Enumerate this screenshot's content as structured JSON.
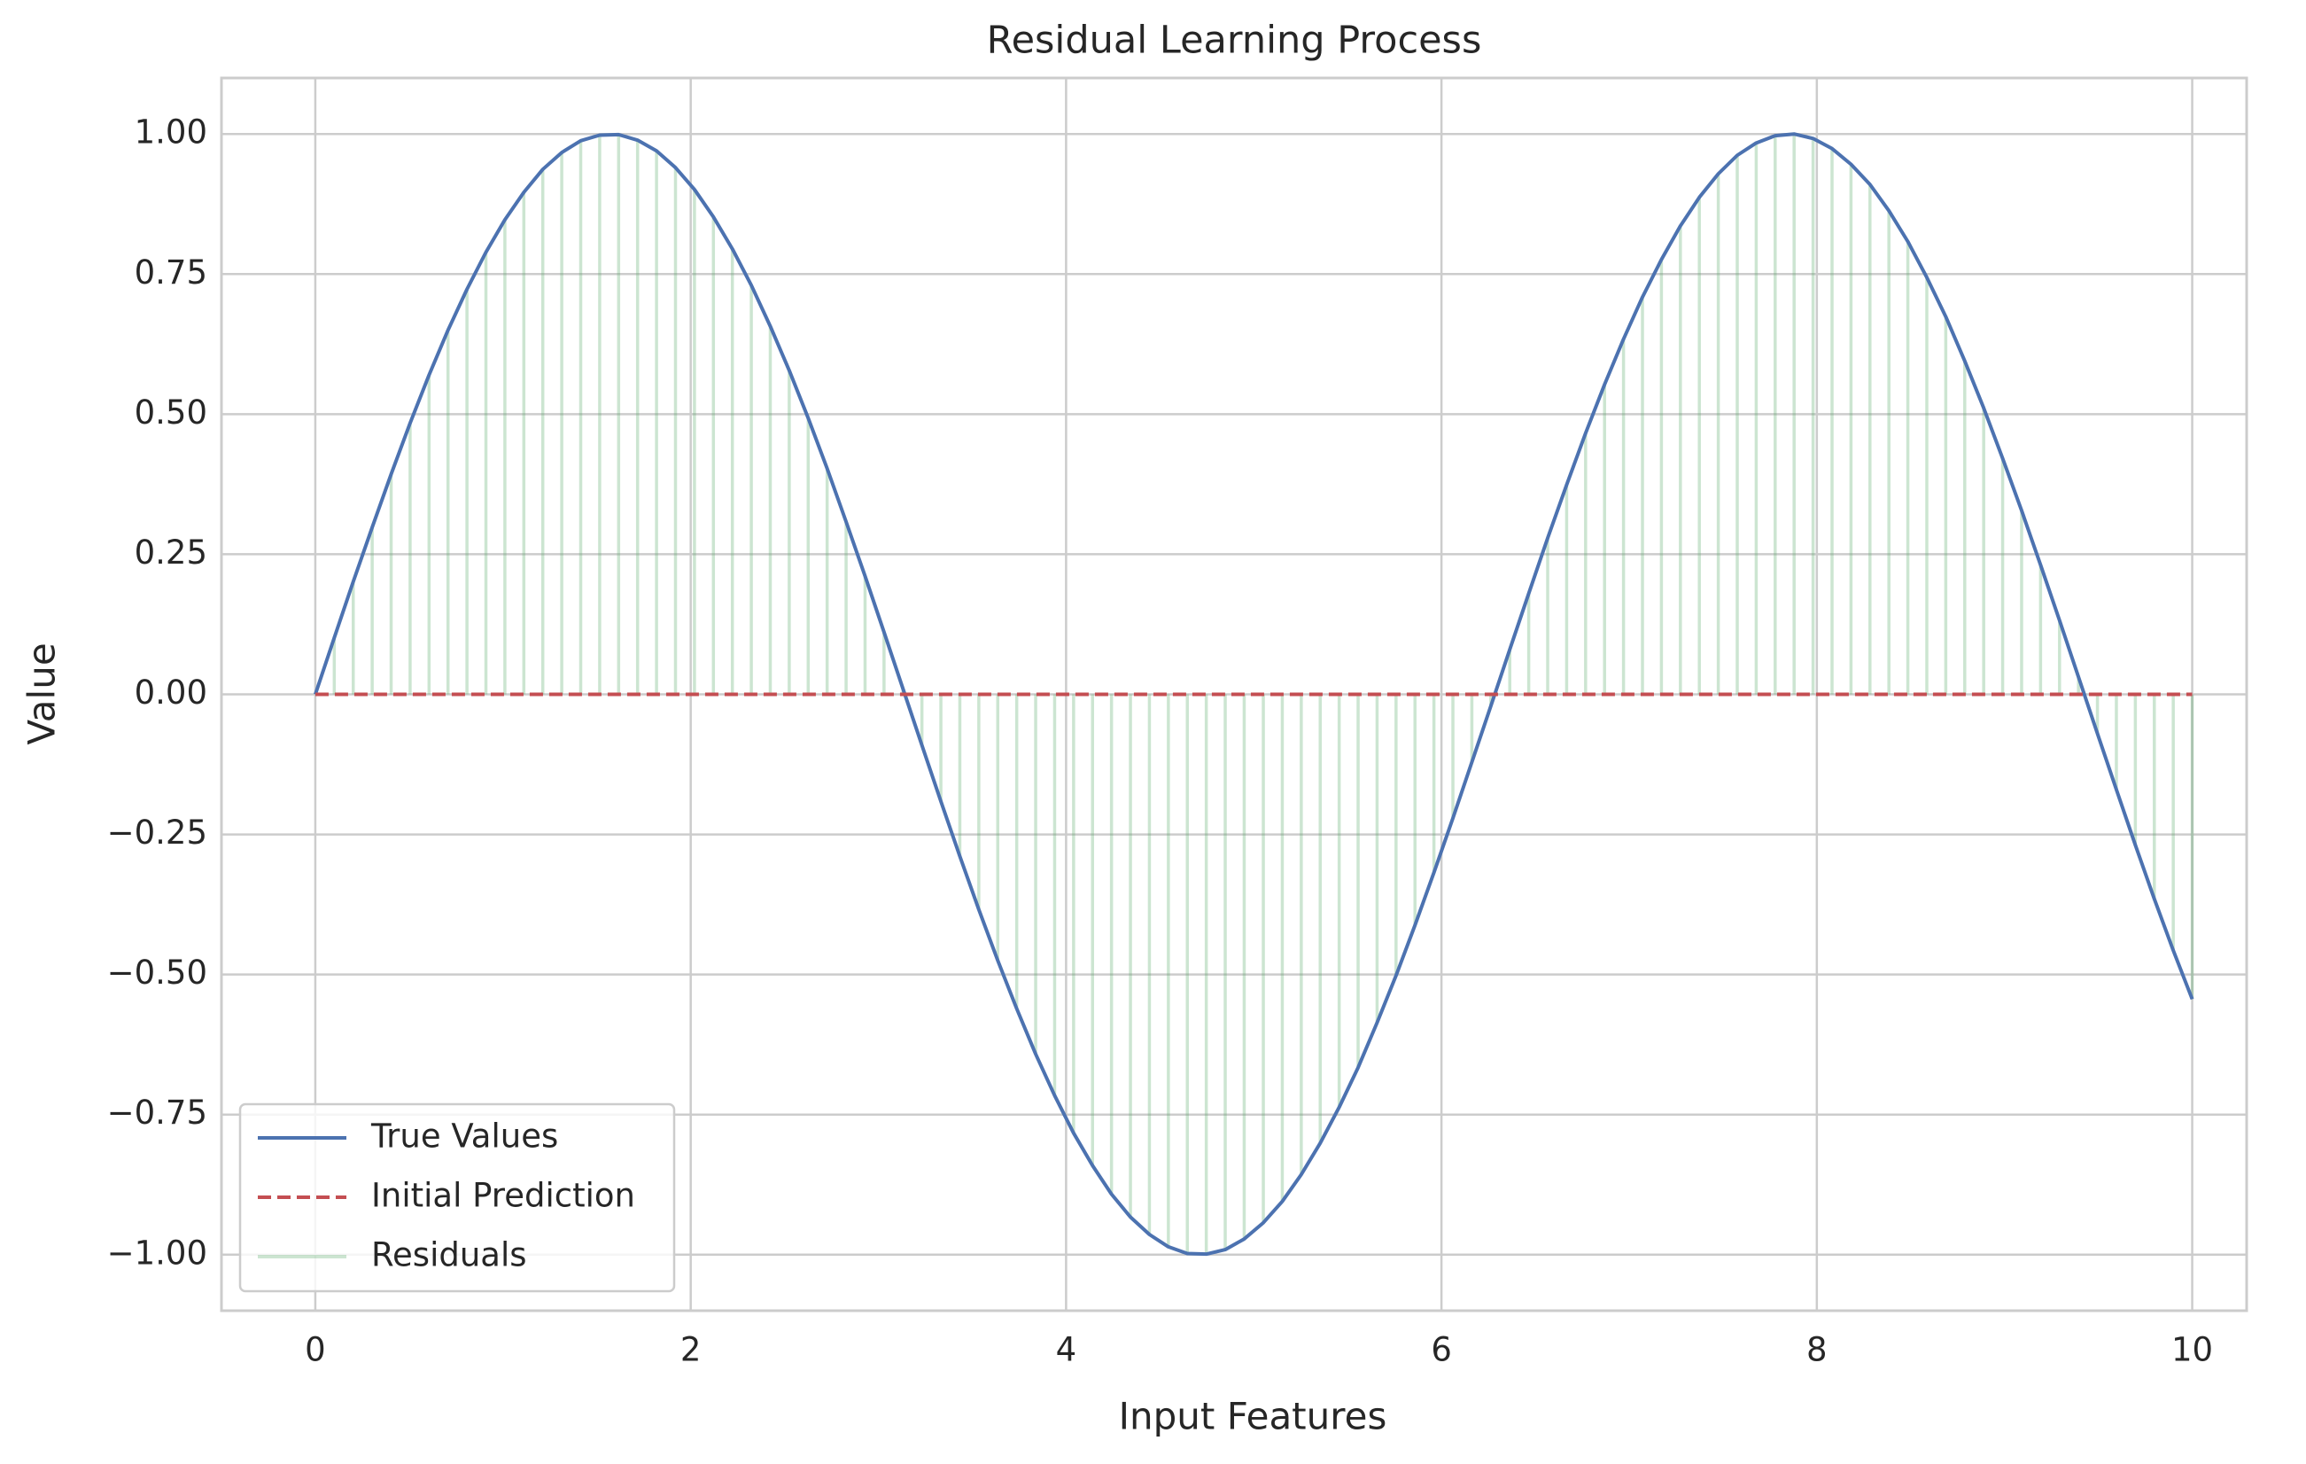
{
  "chart_data": {
    "type": "line",
    "title": "Residual Learning Process",
    "xlabel": "Input Features",
    "ylabel": "Value",
    "x": [
      0,
      0.101,
      0.202,
      0.303,
      0.404,
      0.505,
      0.606,
      0.707,
      0.808,
      0.909,
      1.01,
      1.111,
      1.212,
      1.313,
      1.414,
      1.515,
      1.616,
      1.717,
      1.818,
      1.919,
      2.02,
      2.121,
      2.222,
      2.323,
      2.424,
      2.525,
      2.626,
      2.727,
      2.828,
      2.929,
      3.03,
      3.131,
      3.232,
      3.333,
      3.434,
      3.535,
      3.636,
      3.737,
      3.838,
      3.939,
      4.04,
      4.141,
      4.242,
      4.343,
      4.444,
      4.545,
      4.646,
      4.747,
      4.848,
      4.949,
      5.051,
      5.152,
      5.253,
      5.354,
      5.455,
      5.556,
      5.657,
      5.758,
      5.859,
      5.96,
      6.061,
      6.162,
      6.263,
      6.364,
      6.465,
      6.566,
      6.667,
      6.768,
      6.869,
      6.97,
      7.071,
      7.172,
      7.273,
      7.374,
      7.475,
      7.576,
      7.677,
      7.778,
      7.879,
      7.98,
      8.081,
      8.182,
      8.283,
      8.384,
      8.485,
      8.586,
      8.687,
      8.788,
      8.889,
      8.99,
      9.091,
      9.192,
      9.293,
      9.394,
      9.495,
      9.596,
      9.697,
      9.798,
      9.899,
      10
    ],
    "series": [
      {
        "name": "True Values",
        "color": "#4c72b0",
        "values": [
          0,
          0.101,
          0.201,
          0.298,
          0.393,
          0.484,
          0.57,
          0.65,
          0.723,
          0.789,
          0.847,
          0.896,
          0.937,
          0.967,
          0.988,
          0.998,
          0.999,
          0.989,
          0.97,
          0.94,
          0.901,
          0.852,
          0.795,
          0.73,
          0.657,
          0.578,
          0.493,
          0.403,
          0.308,
          0.211,
          0.111,
          0.01,
          -0.091,
          -0.191,
          -0.289,
          -0.384,
          -0.475,
          -0.561,
          -0.642,
          -0.716,
          -0.783,
          -0.841,
          -0.892,
          -0.933,
          -0.964,
          -0.986,
          -0.998,
          -0.999,
          -0.991,
          -0.972,
          -0.943,
          -0.905,
          -0.857,
          -0.801,
          -0.737,
          -0.666,
          -0.586,
          -0.502,
          -0.412,
          -0.318,
          -0.221,
          -0.121,
          -0.021,
          0.08,
          0.18,
          0.279,
          0.374,
          0.466,
          0.553,
          0.634,
          0.709,
          0.776,
          0.836,
          0.887,
          0.929,
          0.962,
          0.984,
          0.997,
          1,
          0.992,
          0.974,
          0.946,
          0.91,
          0.863,
          0.808,
          0.744,
          0.674,
          0.595,
          0.511,
          0.421,
          0.328,
          0.231,
          0.132,
          0.031,
          -0.07,
          -0.17,
          -0.269,
          -0.365,
          -0.457,
          -0.544
        ]
      },
      {
        "name": "Initial Prediction",
        "color": "#c44e52",
        "dashed": true,
        "values": [
          0,
          0,
          0,
          0,
          0,
          0,
          0,
          0,
          0,
          0,
          0,
          0,
          0,
          0,
          0,
          0,
          0,
          0,
          0,
          0,
          0,
          0,
          0,
          0,
          0,
          0,
          0,
          0,
          0,
          0,
          0,
          0,
          0,
          0,
          0,
          0,
          0,
          0,
          0,
          0,
          0,
          0,
          0,
          0,
          0,
          0,
          0,
          0,
          0,
          0,
          0,
          0,
          0,
          0,
          0,
          0,
          0,
          0,
          0,
          0,
          0,
          0,
          0,
          0,
          0,
          0,
          0,
          0,
          0,
          0,
          0,
          0,
          0,
          0,
          0,
          0,
          0,
          0,
          0,
          0,
          0,
          0,
          0,
          0,
          0,
          0,
          0,
          0,
          0,
          0,
          0,
          0,
          0,
          0,
          0,
          0,
          0,
          0,
          0,
          0
        ]
      },
      {
        "name": "Residuals",
        "color": "#55a868",
        "opacity": 0.3
      }
    ],
    "xlim": [
      -0.5,
      10.29
    ],
    "xticks": [
      0,
      2,
      4,
      6,
      8,
      10
    ],
    "ylim": [
      -1.1,
      1.1
    ],
    "yticks": [
      {
        "value": -1,
        "label": "−1.00"
      },
      {
        "value": -0.75,
        "label": "−0.75"
      },
      {
        "value": -0.5,
        "label": "−0.50"
      },
      {
        "value": -0.25,
        "label": "−0.25"
      },
      {
        "value": 0,
        "label": "0.00"
      },
      {
        "value": 0.25,
        "label": "0.25"
      },
      {
        "value": 0.5,
        "label": "0.50"
      },
      {
        "value": 0.75,
        "label": "0.75"
      },
      {
        "value": 1,
        "label": "1.00"
      }
    ],
    "grid": true,
    "legend": "lower left"
  }
}
